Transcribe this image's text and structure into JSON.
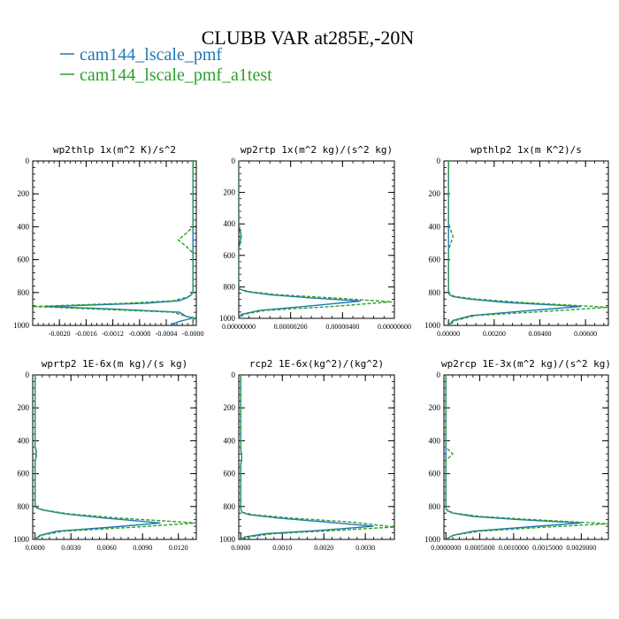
{
  "figure": {
    "title": "CLUBB VAR at285E,-20N",
    "legend": [
      {
        "label": "cam144_lscale_pmf",
        "color": "#1f77b4",
        "dash": "solid"
      },
      {
        "label": "cam144_lscale_pmf_a1test",
        "color": "#2ca02c",
        "dash": "dashed"
      }
    ]
  },
  "chart_data": [
    {
      "type": "line",
      "title": "wp2thlp  1x(m^2 K)/s^2",
      "xlim": [
        -0.0024,
        5e-05
      ],
      "ylim": [
        1000,
        0
      ],
      "xticks": [
        -0.002,
        -0.0016,
        -0.0012,
        -0.0008,
        -0.0004,
        0.0
      ],
      "xtick_labels": [
        "-0.0020",
        "-0.0016",
        "-0.0012",
        "-0.0008",
        "-0.0004",
        "-0.0000"
      ],
      "yticks": [
        0,
        200,
        400,
        600,
        800,
        1000
      ],
      "ytick_labels": [
        "0",
        "200",
        "400",
        "600",
        "800",
        "1000"
      ],
      "series": [
        {
          "name": "cam144_lscale_pmf",
          "x": [
            0.0,
            0.0,
            0.0,
            0.0,
            0.0,
            0.0,
            0.0,
            0.0,
            -3e-05,
            -8e-05,
            -0.0002,
            -0.0007,
            -0.0022,
            -0.0012,
            -0.0002,
            -0.0001,
            0.0,
            -0.0001,
            -0.0002,
            -0.0003,
            -0.00025
          ],
          "y": [
            0,
            200,
            400,
            450,
            500,
            550,
            600,
            800,
            815,
            830,
            850,
            865,
            885,
            900,
            920,
            945,
            955,
            965,
            975,
            990,
            1000
          ]
        },
        {
          "name": "cam144_lscale_pmf_a1test",
          "x": [
            0.0,
            0.0,
            0.0,
            -0.0001,
            -0.00022,
            -0.0001,
            0.0,
            0.0,
            -3e-05,
            -0.0001,
            -0.0003,
            -0.001,
            -0.0024,
            -0.0015,
            -0.0003,
            -0.0001,
            5e-05,
            0.0,
            0.0,
            0.0,
            0.0
          ],
          "y": [
            0,
            200,
            400,
            440,
            480,
            520,
            560,
            800,
            815,
            830,
            850,
            865,
            885,
            900,
            920,
            945,
            955,
            965,
            975,
            990,
            1000
          ]
        }
      ]
    },
    {
      "type": "line",
      "title": "wp2rtp  1x(m^2 kg)/(s^2 kg)",
      "xlim": [
        0.0,
        6e-06
      ],
      "ylim": [
        1000,
        0
      ],
      "xticks": [
        0.0,
        2e-06,
        4e-06,
        6e-06
      ],
      "xtick_labels": [
        "0.00000000",
        "0.00000200",
        "0.00000400",
        "0.00000600"
      ],
      "yticks": [
        0,
        200,
        400,
        600,
        800,
        1000
      ],
      "ytick_labels": [
        "0",
        "200",
        "400",
        "600",
        "800",
        "1000"
      ],
      "series": [
        {
          "name": "cam144_lscale_pmf",
          "x": [
            0.0,
            0.0,
            5e-08,
            1e-07,
            5e-08,
            0.0,
            0.0,
            5e-08,
            3e-07,
            1.2e-06,
            2.8e-06,
            4.7e-06,
            2.8e-06,
            8e-07,
            1e-07,
            0.0
          ],
          "y": [
            0,
            400,
            440,
            480,
            520,
            560,
            800,
            815,
            830,
            850,
            870,
            890,
            920,
            950,
            975,
            1000
          ]
        },
        {
          "name": "cam144_lscale_pmf_a1test",
          "x": [
            0.0,
            0.0,
            4e-08,
            8e-08,
            4e-08,
            0.0,
            0.0,
            5e-08,
            4e-07,
            1.5e-06,
            3.6e-06,
            5.9e-06,
            3.6e-06,
            1e-06,
            2e-07,
            0.0
          ],
          "y": [
            0,
            400,
            440,
            480,
            520,
            560,
            800,
            815,
            830,
            850,
            870,
            895,
            925,
            950,
            975,
            1000
          ]
        }
      ]
    },
    {
      "type": "line",
      "title": "wpthlp2  1x(m K^2)/s",
      "xlim": [
        -0.0002,
        0.007
      ],
      "ylim": [
        1000,
        0
      ],
      "xticks": [
        0.0,
        0.002,
        0.004,
        0.006
      ],
      "xtick_labels": [
        "0.00000",
        "0.00200",
        "0.00400",
        "0.00600"
      ],
      "yticks": [
        0,
        200,
        400,
        600,
        800,
        1000
      ],
      "ytick_labels": [
        "0",
        "200",
        "400",
        "600",
        "800",
        "1000"
      ],
      "series": [
        {
          "name": "cam144_lscale_pmf",
          "x": [
            0.0,
            0.0,
            0.0,
            0.0,
            3e-05,
            0.0002,
            0.0009,
            0.0025,
            0.0058,
            0.0035,
            0.001,
            0.0002,
            0.0
          ],
          "y": [
            0,
            400,
            600,
            800,
            812,
            825,
            840,
            860,
            885,
            910,
            940,
            970,
            1000
          ]
        },
        {
          "name": "cam144_lscale_pmf_a1test",
          "x": [
            0.0,
            0.0,
            0.0001,
            0.0002,
            0.0001,
            0.0,
            0.0,
            4e-05,
            0.0003,
            0.0012,
            0.0032,
            0.007,
            0.0042,
            0.0012,
            0.0003,
            0.0
          ],
          "y": [
            0,
            380,
            420,
            460,
            500,
            540,
            800,
            812,
            825,
            840,
            860,
            890,
            915,
            940,
            970,
            1000
          ]
        }
      ]
    },
    {
      "type": "line",
      "title": "wprtp2  1E-6x(m kg)/(s kg)",
      "xlim": [
        -0.0002,
        0.0135
      ],
      "ylim": [
        1000,
        0
      ],
      "xticks": [
        0.0,
        0.003,
        0.006,
        0.009,
        0.012
      ],
      "xtick_labels": [
        "0.0000",
        "0.0030",
        "0.0060",
        "0.0090",
        "0.0120"
      ],
      "yticks": [
        0,
        200,
        400,
        600,
        800,
        1000
      ],
      "ytick_labels": [
        "0",
        "200",
        "400",
        "600",
        "800",
        "1000"
      ],
      "series": [
        {
          "name": "cam144_lscale_pmf",
          "x": [
            0.0,
            0.0,
            8e-05,
            8e-05,
            0.0,
            0.0,
            0.0001,
            0.0007,
            0.0025,
            0.0058,
            0.0105,
            0.0065,
            0.0018,
            0.0004,
            0.0
          ],
          "y": [
            0,
            440,
            460,
            500,
            520,
            790,
            808,
            822,
            845,
            870,
            900,
            925,
            950,
            975,
            1000
          ]
        },
        {
          "name": "cam144_lscale_pmf_a1test",
          "x": [
            0.0,
            0.0,
            0.0001,
            0.0001,
            0.0,
            0.0,
            0.00012,
            0.0008,
            0.0029,
            0.007,
            0.0135,
            0.0085,
            0.0024,
            0.0005,
            0.0
          ],
          "y": [
            0,
            440,
            460,
            500,
            520,
            790,
            808,
            822,
            845,
            870,
            900,
            925,
            950,
            975,
            1000
          ]
        }
      ]
    },
    {
      "type": "line",
      "title": "rcp2  1E-6x(kg^2)/(kg^2)",
      "xlim": [
        -5e-05,
        0.0037
      ],
      "ylim": [
        1000,
        0
      ],
      "xticks": [
        0.0,
        0.001,
        0.002,
        0.003
      ],
      "xtick_labels": [
        "0.0000",
        "0.0010",
        "0.0020",
        "0.0030"
      ],
      "yticks": [
        0,
        200,
        400,
        600,
        800,
        1000
      ],
      "ytick_labels": [
        "0",
        "200",
        "400",
        "600",
        "800",
        "1000"
      ],
      "series": [
        {
          "name": "cam144_lscale_pmf",
          "x": [
            0.0,
            0.0,
            2e-05,
            2e-05,
            0.0,
            0.0,
            3e-05,
            0.0002,
            0.0009,
            0.0021,
            0.0032,
            0.0019,
            0.0006,
            0.0001,
            0.0
          ],
          "y": [
            0,
            460,
            480,
            520,
            540,
            820,
            835,
            850,
            870,
            895,
            920,
            945,
            965,
            985,
            1000
          ]
        },
        {
          "name": "cam144_lscale_pmf_a1test",
          "x": [
            0.0,
            0.0,
            2e-05,
            2e-05,
            0.0,
            0.0,
            4e-05,
            0.0003,
            0.0012,
            0.0027,
            0.0037,
            0.0023,
            0.0008,
            0.0002,
            0.0
          ],
          "y": [
            0,
            460,
            480,
            520,
            540,
            820,
            835,
            850,
            870,
            895,
            925,
            945,
            965,
            985,
            1000
          ]
        }
      ]
    },
    {
      "type": "line",
      "title": "wp2rcp  1E-3x(m^2 kg)/(s^2 kg)",
      "xlim": [
        -3e-05,
        0.0024
      ],
      "ylim": [
        1000,
        0
      ],
      "xticks": [
        0.0,
        0.0005,
        0.001,
        0.0015,
        0.002
      ],
      "xtick_labels": [
        "0.0000000",
        "0.0005000",
        "0.0010000",
        "0.0015000",
        "0.0020000"
      ],
      "yticks": [
        0,
        200,
        400,
        600,
        800,
        1000
      ],
      "ytick_labels": [
        "0",
        "200",
        "400",
        "600",
        "800",
        "1000"
      ],
      "series": [
        {
          "name": "cam144_lscale_pmf",
          "x": [
            0.0,
            0.0,
            0.0,
            2e-05,
            0.0001,
            0.0004,
            0.0011,
            0.002,
            0.0012,
            0.0004,
            0.0001,
            0.0
          ],
          "y": [
            0,
            500,
            810,
            825,
            840,
            860,
            880,
            900,
            925,
            950,
            975,
            1000
          ]
        },
        {
          "name": "cam144_lscale_pmf_a1test",
          "x": [
            0.0,
            0.0,
            5e-05,
            0.0001,
            5e-05,
            0.0,
            0.0,
            3e-05,
            0.00012,
            0.0005,
            0.0013,
            0.0024,
            0.0015,
            0.0005,
            0.0001,
            0.0
          ],
          "y": [
            0,
            440,
            460,
            480,
            500,
            520,
            810,
            825,
            840,
            860,
            880,
            905,
            925,
            950,
            975,
            1000
          ]
        }
      ]
    }
  ]
}
